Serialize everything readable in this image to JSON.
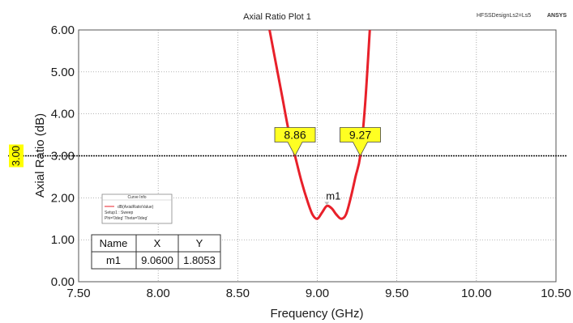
{
  "header": {
    "design": "HFSSDesignLs2=Ls5",
    "brand": "ANSYS"
  },
  "chart_data": {
    "type": "line",
    "title": "Axial Ratio Plot 1",
    "xlabel": "Frequency (GHz)",
    "ylabel": "Axial Ratio (dB)",
    "xlim": [
      7.5,
      10.5
    ],
    "ylim": [
      0,
      6
    ],
    "x_ticks": [
      "7.50",
      "8.00",
      "8.50",
      "9.00",
      "9.50",
      "10.00",
      "10.50"
    ],
    "y_ticks": [
      "0.00",
      "1.00",
      "2.00",
      "3.00",
      "4.00",
      "5.00",
      "6.00"
    ],
    "grid": true,
    "series": [
      {
        "name": "dB(AxialRatioValue)",
        "color": "#e8202a",
        "x": [
          8.7,
          8.74,
          8.78,
          8.82,
          8.86,
          8.9,
          8.94,
          8.97,
          9.0,
          9.03,
          9.06,
          9.09,
          9.12,
          9.15,
          9.18,
          9.21,
          9.24,
          9.27,
          9.3,
          9.33
        ],
        "y": [
          6.0,
          5.2,
          4.4,
          3.6,
          3.0,
          2.4,
          1.9,
          1.6,
          1.5,
          1.65,
          1.8053,
          1.75,
          1.6,
          1.5,
          1.6,
          2.0,
          2.5,
          3.0,
          4.2,
          6.0
        ]
      }
    ],
    "reference_line": {
      "y": 3.0,
      "label": "3.00"
    },
    "markers": [
      {
        "label": "8.86",
        "x": 8.86,
        "y": 3.0
      },
      {
        "label": "9.27",
        "x": 9.27,
        "y": 3.0
      }
    ],
    "point_marker": {
      "label": "m1",
      "x": 9.06,
      "y": 1.8053
    },
    "legend": {
      "position": "bottom-left",
      "title": "Curve Info",
      "entry": "dB(AxialRatioValue)",
      "details": [
        "Setup1 : Sweep",
        "Phi='0deg' Theta='0deg'"
      ]
    },
    "marker_table": {
      "headers": [
        "Name",
        "X",
        "Y"
      ],
      "rows": [
        [
          "m1",
          "9.0600",
          "1.8053"
        ]
      ]
    }
  }
}
